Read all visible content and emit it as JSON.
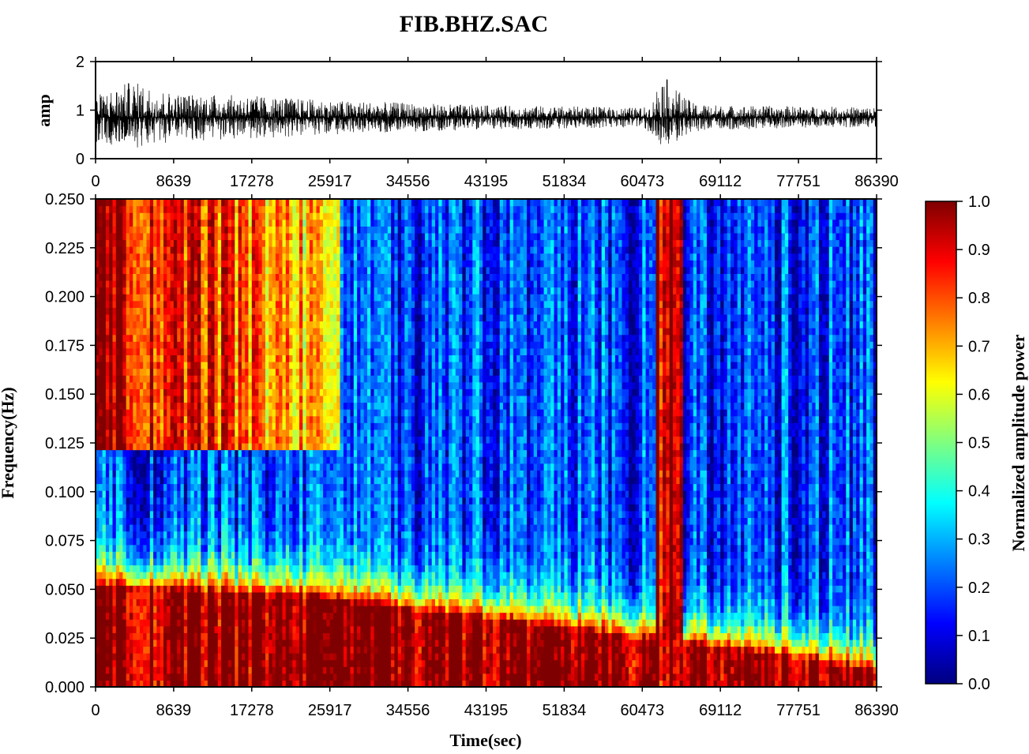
{
  "title": "FIB.BHZ.SAC",
  "colors": {
    "waveform": "#000000",
    "axis": "#000000",
    "background": "#ffffff",
    "colormap": [
      "#00007f",
      "#0000ff",
      "#007fff",
      "#00ffff",
      "#7fff7f",
      "#ffff00",
      "#ff7f00",
      "#ff0000",
      "#7f0000"
    ]
  },
  "chart_data": [
    {
      "type": "line",
      "panel": "waveform",
      "ylabel": "amp",
      "xlim": [
        0,
        86390
      ],
      "ylim": [
        0,
        2
      ],
      "x_ticks": [
        "0",
        "8639",
        "17278",
        "25917",
        "34556",
        "43195",
        "51834",
        "60473",
        "69112",
        "77751",
        "86390"
      ],
      "y_ticks": [
        "0",
        "1",
        "2"
      ],
      "baseline": 0.85,
      "envelope": {
        "x": [
          0,
          2000,
          4000,
          8639,
          17278,
          25917,
          34556,
          43195,
          51834,
          60473,
          61500,
          62500,
          63500,
          64500,
          66000,
          69112,
          77751,
          86390
        ],
        "upper": [
          1.3,
          1.45,
          1.6,
          1.35,
          1.3,
          1.2,
          1.15,
          1.1,
          1.08,
          1.05,
          1.1,
          1.75,
          1.6,
          1.4,
          1.15,
          1.1,
          1.08,
          1.06
        ],
        "lower": [
          0.35,
          0.25,
          0.2,
          0.35,
          0.4,
          0.5,
          0.55,
          0.6,
          0.62,
          0.65,
          0.5,
          0.2,
          0.2,
          0.4,
          0.55,
          0.6,
          0.63,
          0.65
        ]
      }
    },
    {
      "type": "heatmap",
      "panel": "spectrogram",
      "xlabel": "Time(sec)",
      "ylabel": "Frequency(Hz)",
      "xlim": [
        0,
        86390
      ],
      "ylim": [
        0,
        0.25
      ],
      "x_ticks": [
        "0",
        "8639",
        "17278",
        "25917",
        "34556",
        "43195",
        "51834",
        "60473",
        "69112",
        "77751",
        "86390"
      ],
      "y_ticks": [
        "0.000",
        "0.025",
        "0.050",
        "0.075",
        "0.100",
        "0.125",
        "0.150",
        "0.175",
        "0.200",
        "0.225",
        "0.250"
      ],
      "low_freq_band": {
        "time": [
          0,
          8639,
          17278,
          25917,
          34556,
          43195,
          51834,
          60473,
          69112,
          77751,
          86390
        ],
        "edge_freq": [
          0.052,
          0.05,
          0.048,
          0.045,
          0.04,
          0.035,
          0.03,
          0.025,
          0.02,
          0.015,
          0.008
        ]
      },
      "high_freq_patch": {
        "time": [
          0,
          27000
        ],
        "freq": [
          0.12,
          0.25
        ]
      },
      "event": {
        "time": [
          62000,
          65000
        ]
      },
      "colorbar": {
        "label": "Normalized amplitude power",
        "range": [
          0,
          1
        ],
        "ticks": [
          "0.0",
          "0.1",
          "0.2",
          "0.3",
          "0.4",
          "0.5",
          "0.6",
          "0.7",
          "0.8",
          "0.9",
          "1.0"
        ]
      }
    }
  ]
}
